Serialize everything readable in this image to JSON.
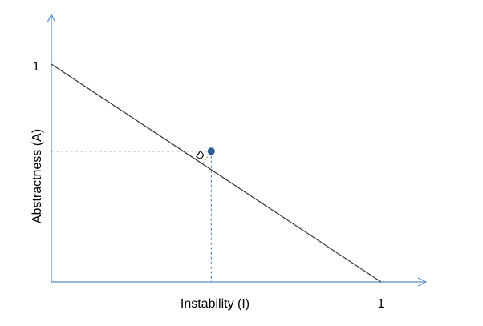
{
  "diagram": {
    "type": "main-sequence-plot",
    "x_axis": {
      "label": "Instability (I)",
      "max_tick_label": "1",
      "max_value": 1
    },
    "y_axis": {
      "label": "Abstractness (A)",
      "max_tick_label": "1",
      "max_value": 1
    },
    "main_sequence": {
      "from": [
        0,
        1
      ],
      "to": [
        1,
        0
      ]
    },
    "component": {
      "instability": 0.485,
      "abstractness": 0.6
    },
    "distance_label": "D",
    "colors": {
      "axis": "#5b8fc9",
      "line": "#333333",
      "guide": "#4a7ebb",
      "point": "#2e5a8f",
      "distance": "#9bbb59"
    }
  }
}
